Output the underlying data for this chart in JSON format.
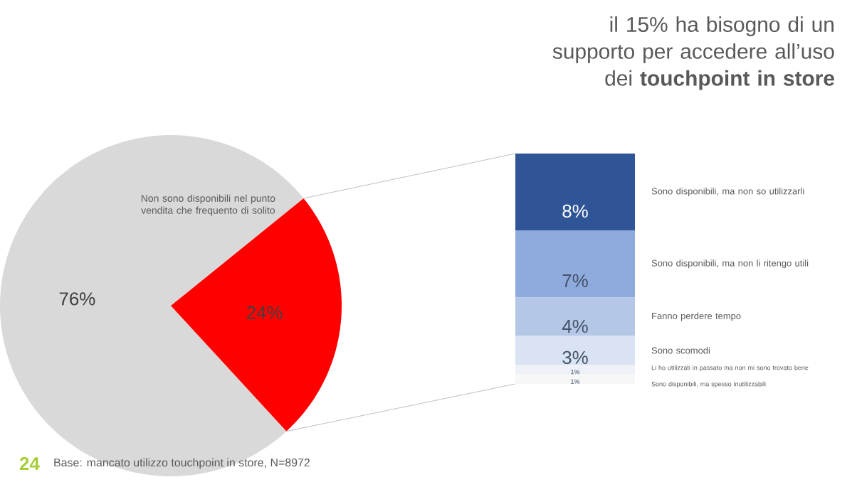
{
  "chart_data": [
    {
      "type": "pie",
      "title": "il 15% ha bisogno di un supporto per accedere all’uso dei **touchpoint in store**",
      "categories": [
        "Non sono disponibili nel punto vendita che frequento di solito",
        null
      ],
      "values": [
        76,
        24
      ],
      "colors": [
        "#d9d9d9",
        "#ff0000"
      ],
      "value_labels": [
        "76%",
        "24%"
      ],
      "annotations": [
        "24",
        "Base: mancato utilizzo touchpoint in store, N=8972"
      ]
    },
    {
      "type": "bar",
      "stacked": true,
      "categories": [
        null
      ],
      "series": [
        {
          "name": "Sono disponibili, ma spesso inutilizzabili",
          "color": "#f7f7f7",
          "values": [
            1
          ],
          "value_labels": [
            "1%"
          ]
        },
        {
          "name": "Li ho utilizzati in passato ma non mi sono trovato bene",
          "color": "#eef1f7",
          "values": [
            1
          ],
          "value_labels": [
            "1%"
          ]
        },
        {
          "name": "Sono scomodi",
          "color": "#dae3f3",
          "values": [
            3
          ],
          "value_labels": [
            "3%"
          ]
        },
        {
          "name": "Fanno perdere tempo",
          "color": "#b4c7e7",
          "values": [
            4
          ],
          "value_labels": [
            "4%"
          ]
        },
        {
          "name": "Sono disponibili, ma non li ritengo utili",
          "color": "#8faadc",
          "values": [
            7
          ],
          "value_labels": [
            "7%"
          ]
        },
        {
          "name": "Sono disponibili, ma non so utilizzarli",
          "color": "#2f5597",
          "values": [
            8
          ],
          "value_labels": [
            "8%"
          ]
        }
      ]
    }
  ]
}
